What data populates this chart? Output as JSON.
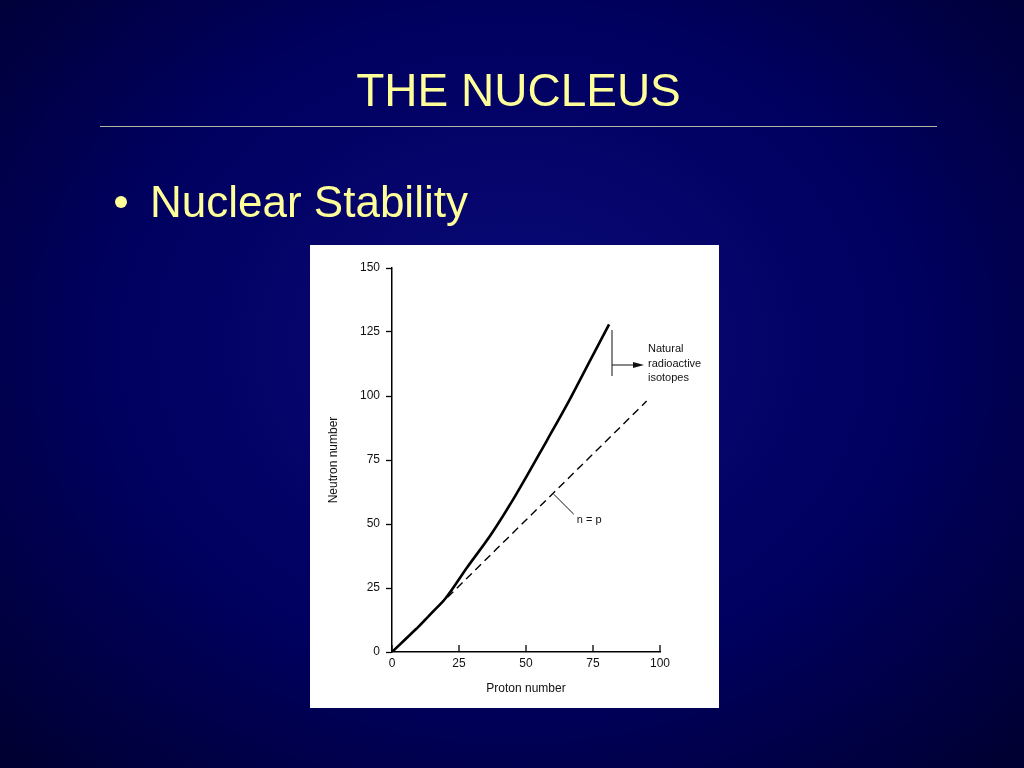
{
  "chart_data": {
    "type": "line",
    "title": "THE NUCLEUS",
    "subtitle": "Nuclear Stability",
    "xlabel": "Proton number",
    "ylabel": "Neutron number",
    "xlim": [
      0,
      100
    ],
    "ylim": [
      0,
      150
    ],
    "xticks": [
      0,
      25,
      50,
      75,
      100
    ],
    "yticks": [
      0,
      25,
      50,
      75,
      100,
      125,
      150
    ],
    "marker": "none",
    "series": [
      {
        "color": "#000000",
        "line_style": "solid",
        "x": [
          0,
          5,
          10,
          15,
          20,
          28,
          37,
          46,
          58,
          66,
          74,
          81
        ],
        "values": [
          0,
          5,
          10,
          15.5,
          21,
          33,
          46,
          61,
          83,
          98,
          114,
          128
        ]
      },
      {
        "color": "#000000",
        "line_style": "dashed",
        "x": [
          0,
          95
        ],
        "values": [
          0,
          98
        ]
      }
    ],
    "annotations": [
      "Natural radioactive isotopes",
      {
        "text": "n = p",
        "x": 60,
        "y": 62
      }
    ]
  }
}
